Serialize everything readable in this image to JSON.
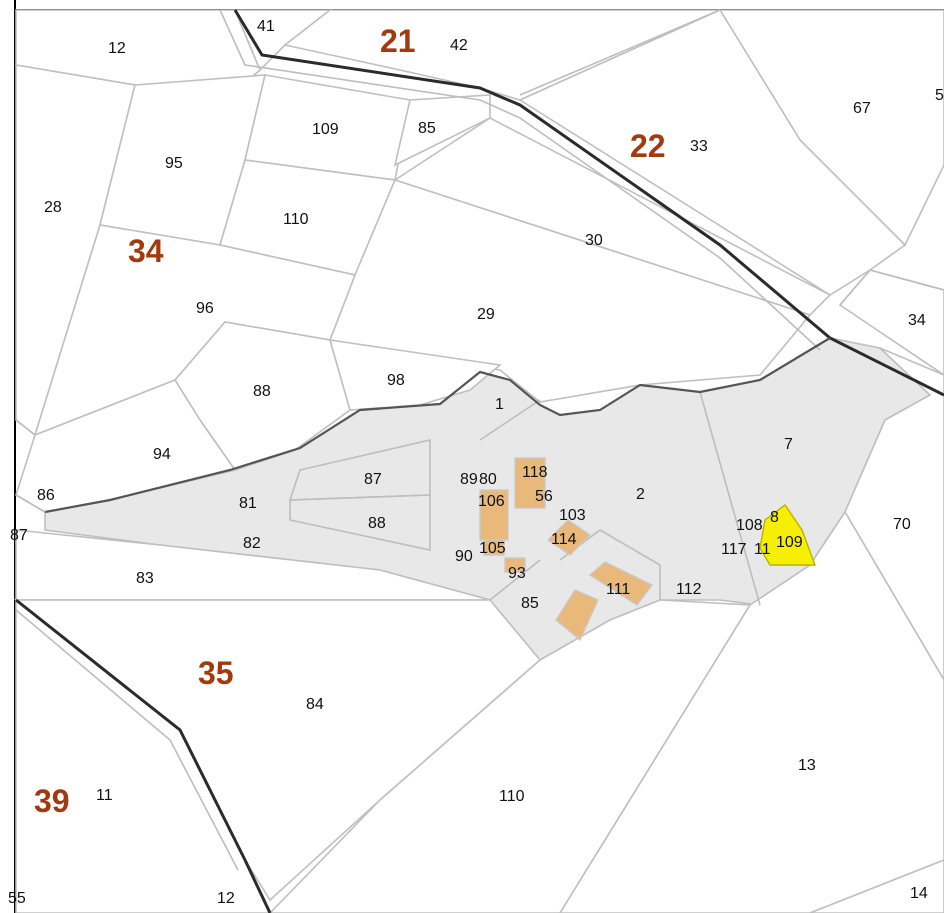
{
  "map": {
    "sections": [
      {
        "id": "21",
        "label": "21"
      },
      {
        "id": "22",
        "label": "22"
      },
      {
        "id": "34",
        "label": "34"
      },
      {
        "id": "35",
        "label": "35"
      },
      {
        "id": "39",
        "label": "39"
      }
    ],
    "parcels": [
      "41",
      "12",
      "42",
      "67",
      "5",
      "109",
      "85",
      "95",
      "33",
      "28",
      "110",
      "30",
      "96",
      "29",
      "34",
      "88",
      "98",
      "1",
      "7",
      "94",
      "87",
      "89",
      "80",
      "118",
      "56",
      "2",
      "86",
      "81",
      "106",
      "103",
      "70",
      "87",
      "88",
      "108",
      "8",
      "82",
      "105",
      "114",
      "117",
      "11",
      "109",
      "90",
      "93",
      "83",
      "111",
      "112",
      "85",
      "84",
      "13",
      "11",
      "110",
      "55",
      "12",
      "14"
    ],
    "colors": {
      "section_label": "#a33a0f",
      "selected_parcel": "#f6f000",
      "building": "#e8b97a",
      "estate_area": "#e8e8e8"
    }
  }
}
